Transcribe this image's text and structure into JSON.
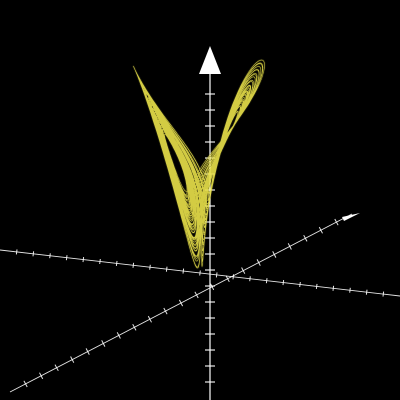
{
  "scene": {
    "background": "#000000",
    "axis_color": "#ffffff",
    "curve_color": "#e8e04a",
    "subject": "lorenz-attractor",
    "system_parameters": {
      "sigma": 10,
      "rho": 28,
      "beta": 2.6667
    },
    "view": "3d-perspective",
    "axes": [
      "x-axis",
      "y-axis",
      "z-axis"
    ],
    "axis_arrowheads": [
      "z-axis-arrowhead",
      "x-axis-arrowhead"
    ]
  }
}
